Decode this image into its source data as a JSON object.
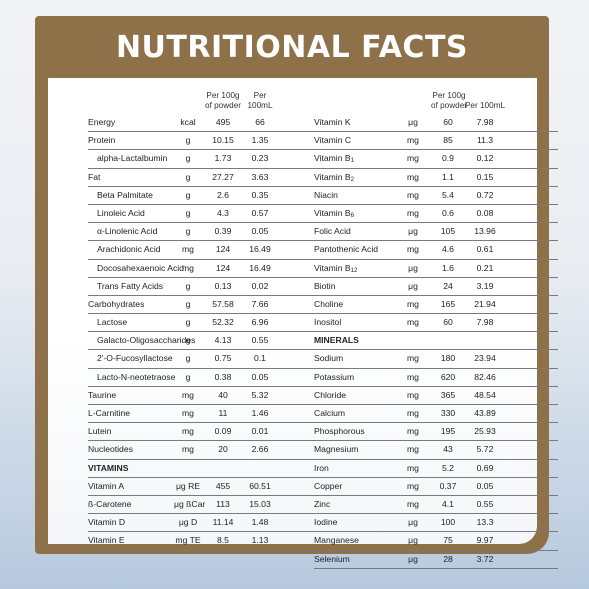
{
  "title": "NUTRITIONAL FACTS",
  "columns": {
    "per100g_line1": "Per 100g",
    "per100g_line2": "of powder",
    "per100ml": "Per 100mL"
  },
  "colors": {
    "frame": "#8f7149",
    "title_text": "#ffffff",
    "panel": "#ffffff"
  },
  "left_rows": [
    {
      "name": "Energy",
      "unit": "kcal",
      "v1": "495",
      "v2": "66",
      "indent": false,
      "header": false
    },
    {
      "name": "Protein",
      "unit": "g",
      "v1": "10.15",
      "v2": "1.35",
      "indent": false,
      "header": false
    },
    {
      "name": "alpha-Lactalbumin",
      "unit": "g",
      "v1": "1.73",
      "v2": "0.23",
      "indent": true,
      "header": false
    },
    {
      "name": "Fat",
      "unit": "g",
      "v1": "27.27",
      "v2": "3.63",
      "indent": false,
      "header": false
    },
    {
      "name": "Beta Palmitate",
      "unit": "g",
      "v1": "2.6",
      "v2": "0.35",
      "indent": true,
      "header": false
    },
    {
      "name": "Linoleic Acid",
      "unit": "g",
      "v1": "4.3",
      "v2": "0.57",
      "indent": true,
      "header": false
    },
    {
      "name": "α-Linolenic Acid",
      "unit": "g",
      "v1": "0.39",
      "v2": "0.05",
      "indent": true,
      "header": false
    },
    {
      "name": "Arachidonic Acid",
      "unit": "mg",
      "v1": "124",
      "v2": "16.49",
      "indent": true,
      "header": false
    },
    {
      "name": "Docosahexaenoic Acid",
      "unit": "mg",
      "v1": "124",
      "v2": "16.49",
      "indent": true,
      "header": false
    },
    {
      "name": "Trans Fatty Acids",
      "unit": "g",
      "v1": "0.13",
      "v2": "0.02",
      "indent": true,
      "header": false
    },
    {
      "name": "Carbohydrates",
      "unit": "g",
      "v1": "57.58",
      "v2": "7.66",
      "indent": false,
      "header": false
    },
    {
      "name": "Lactose",
      "unit": "g",
      "v1": "52.32",
      "v2": "6.96",
      "indent": true,
      "header": false
    },
    {
      "name": "Galacto-Oligosaccharides",
      "unit": "g",
      "v1": "4.13",
      "v2": "0.55",
      "indent": true,
      "header": false
    },
    {
      "name": "2'-O-Fucosyllactose",
      "unit": "g",
      "v1": "0.75",
      "v2": "0.1",
      "indent": true,
      "header": false
    },
    {
      "name": "Lacto-N-neotetraose",
      "unit": "g",
      "v1": "0.38",
      "v2": "0.05",
      "indent": true,
      "header": false
    },
    {
      "name": "Taurine",
      "unit": "mg",
      "v1": "40",
      "v2": "5.32",
      "indent": false,
      "header": false
    },
    {
      "name": "L-Carnitine",
      "unit": "mg",
      "v1": "11",
      "v2": "1.46",
      "indent": false,
      "header": false
    },
    {
      "name": "Lutein",
      "unit": "mg",
      "v1": "0.09",
      "v2": "0.01",
      "indent": false,
      "header": false
    },
    {
      "name": "Nucleotides",
      "unit": "mg",
      "v1": "20",
      "v2": "2.66",
      "indent": false,
      "header": false
    },
    {
      "name": "VITAMINS",
      "unit": "",
      "v1": "",
      "v2": "",
      "indent": false,
      "header": true
    },
    {
      "name": "Vitamin A",
      "unit": "μg RE",
      "v1": "455",
      "v2": "60.51",
      "indent": false,
      "header": false
    },
    {
      "name": "ß-Carotene",
      "unit": "μg ßCar",
      "v1": "113",
      "v2": "15.03",
      "indent": false,
      "header": false
    },
    {
      "name": "Vitamin D",
      "unit": "μg D",
      "v1": "11.14",
      "v2": "1.48",
      "indent": false,
      "header": false
    },
    {
      "name": "Vitamin E",
      "unit": "mg TE",
      "v1": "8.5",
      "v2": "1.13",
      "indent": false,
      "header": false
    }
  ],
  "right_rows": [
    {
      "name": "Vitamin K",
      "sub": "",
      "unit": "μg",
      "v1": "60",
      "v2": "7.98",
      "header": false
    },
    {
      "name": "Vitamin C",
      "sub": "",
      "unit": "mg",
      "v1": "85",
      "v2": "11.3",
      "header": false
    },
    {
      "name": "Vitamin B",
      "sub": "1",
      "unit": "mg",
      "v1": "0.9",
      "v2": "0.12",
      "header": false
    },
    {
      "name": "Vitamin B",
      "sub": "2",
      "unit": "mg",
      "v1": "1.1",
      "v2": "0.15",
      "header": false
    },
    {
      "name": "Niacin",
      "sub": "",
      "unit": "mg",
      "v1": "5.4",
      "v2": "0.72",
      "header": false
    },
    {
      "name": "Vitamin B",
      "sub": "6",
      "unit": "mg",
      "v1": "0.6",
      "v2": "0.08",
      "header": false
    },
    {
      "name": "Folic Acid",
      "sub": "",
      "unit": "μg",
      "v1": "105",
      "v2": "13.96",
      "header": false
    },
    {
      "name": "Pantothenic Acid",
      "sub": "",
      "unit": "mg",
      "v1": "4.6",
      "v2": "0.61",
      "header": false
    },
    {
      "name": "Vitamin B",
      "sub": "12",
      "unit": "μg",
      "v1": "1.6",
      "v2": "0.21",
      "header": false
    },
    {
      "name": "Biotin",
      "sub": "",
      "unit": "μg",
      "v1": "24",
      "v2": "3.19",
      "header": false
    },
    {
      "name": "Choline",
      "sub": "",
      "unit": "mg",
      "v1": "165",
      "v2": "21.94",
      "header": false
    },
    {
      "name": "Inositol",
      "sub": "",
      "unit": "mg",
      "v1": "60",
      "v2": "7.98",
      "header": false
    },
    {
      "name": "MINERALS",
      "sub": "",
      "unit": "",
      "v1": "",
      "v2": "",
      "header": true
    },
    {
      "name": "Sodium",
      "sub": "",
      "unit": "mg",
      "v1": "180",
      "v2": "23.94",
      "header": false
    },
    {
      "name": "Potassium",
      "sub": "",
      "unit": "mg",
      "v1": "620",
      "v2": "82.46",
      "header": false
    },
    {
      "name": "Chloride",
      "sub": "",
      "unit": "mg",
      "v1": "365",
      "v2": "48.54",
      "header": false
    },
    {
      "name": "Calcium",
      "sub": "",
      "unit": "mg",
      "v1": "330",
      "v2": "43.89",
      "header": false
    },
    {
      "name": "Phosphorous",
      "sub": "",
      "unit": "mg",
      "v1": "195",
      "v2": "25.93",
      "header": false
    },
    {
      "name": "Magnesium",
      "sub": "",
      "unit": "mg",
      "v1": "43",
      "v2": "5.72",
      "header": false
    },
    {
      "name": "Iron",
      "sub": "",
      "unit": "mg",
      "v1": "5.2",
      "v2": "0.69",
      "header": false
    },
    {
      "name": "Copper",
      "sub": "",
      "unit": "mg",
      "v1": "0.37",
      "v2": "0.05",
      "header": false
    },
    {
      "name": "Zinc",
      "sub": "",
      "unit": "mg",
      "v1": "4.1",
      "v2": "0.55",
      "header": false
    },
    {
      "name": "Iodine",
      "sub": "",
      "unit": "μg",
      "v1": "100",
      "v2": "13.3",
      "header": false
    },
    {
      "name": "Manganese",
      "sub": "",
      "unit": "μg",
      "v1": "75",
      "v2": "9.97",
      "header": false
    },
    {
      "name": "Selenium",
      "sub": "",
      "unit": "μg",
      "v1": "28",
      "v2": "3.72",
      "header": false
    }
  ]
}
